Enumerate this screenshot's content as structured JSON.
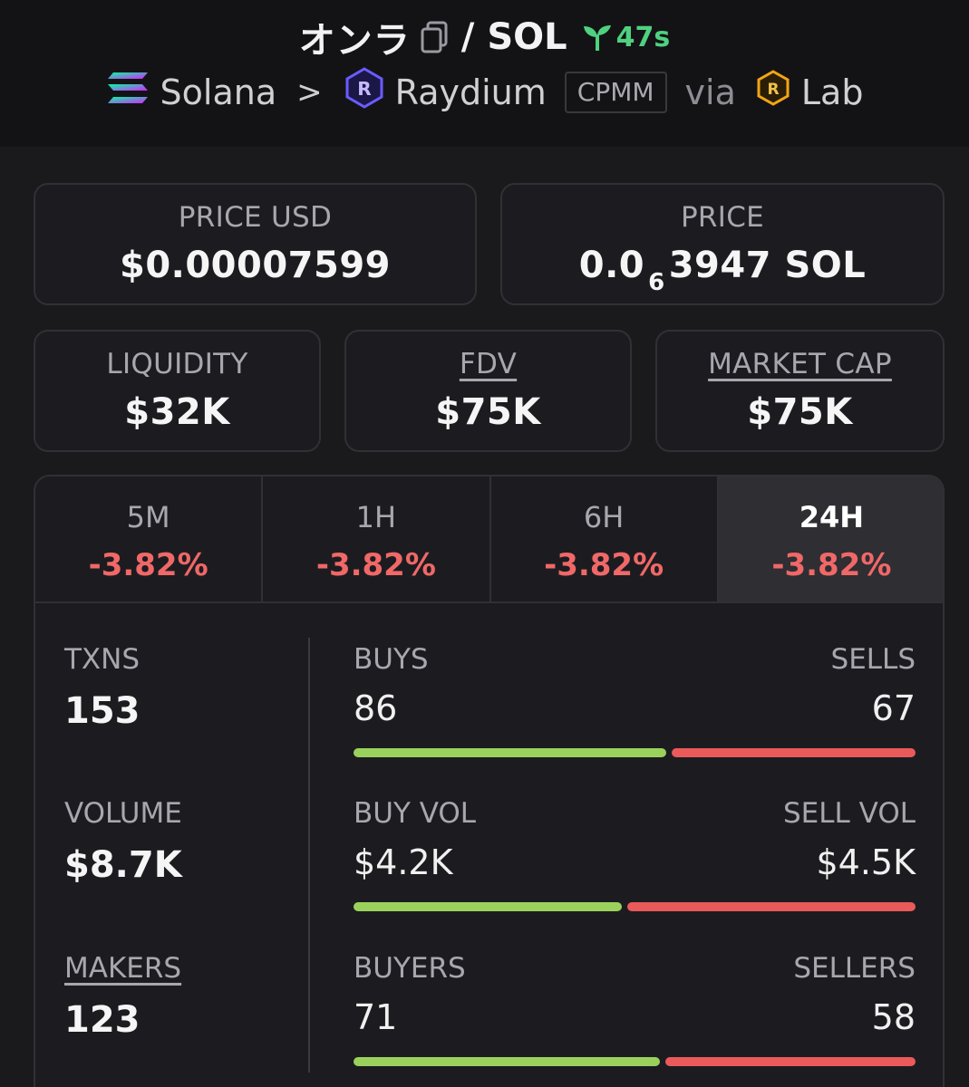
{
  "header": {
    "token": "オンラ",
    "slash": "/",
    "quote": "SOL",
    "age": "47s",
    "chain": "Solana",
    "chevron": ">",
    "dex": "Raydium",
    "pool_type": "CPMM",
    "via": "via",
    "launchpad": "Lab"
  },
  "cards": {
    "price_usd": {
      "label": "PRICE USD",
      "value": "$0.00007599"
    },
    "price": {
      "label": "PRICE",
      "prefix": "0.0",
      "zeros": "6",
      "digits": "3947",
      "unit": "SOL"
    },
    "liquidity": {
      "label": "LIQUIDITY",
      "value": "$32K"
    },
    "fdv": {
      "label": "FDV",
      "value": "$75K"
    },
    "market_cap": {
      "label": "MARKET CAP",
      "value": "$75K"
    }
  },
  "tabs": [
    {
      "label": "5M",
      "change": "-3.82%"
    },
    {
      "label": "1H",
      "change": "-3.82%"
    },
    {
      "label": "6H",
      "change": "-3.82%"
    },
    {
      "label": "24H",
      "change": "-3.82%"
    }
  ],
  "stats": {
    "txns": {
      "label": "TXNS",
      "value": "153"
    },
    "volume": {
      "label": "VOLUME",
      "value": "$8.7K"
    },
    "makers": {
      "label": "MAKERS",
      "value": "123"
    },
    "buys_sells": {
      "left_label": "BUYS",
      "left_value": "86",
      "right_label": "SELLS",
      "right_value": "67",
      "buy_fraction": 0.562
    },
    "vol": {
      "left_label": "BUY VOL",
      "left_value": "$4.2K",
      "right_label": "SELL VOL",
      "right_value": "$4.5K",
      "buy_fraction": 0.483
    },
    "traders": {
      "left_label": "BUYERS",
      "left_value": "71",
      "right_label": "SELLERS",
      "right_value": "58",
      "buy_fraction": 0.55
    }
  },
  "colors": {
    "positive": "#9ad15c",
    "negative": "#ea5a5a",
    "age_green": "#4fd17f"
  }
}
